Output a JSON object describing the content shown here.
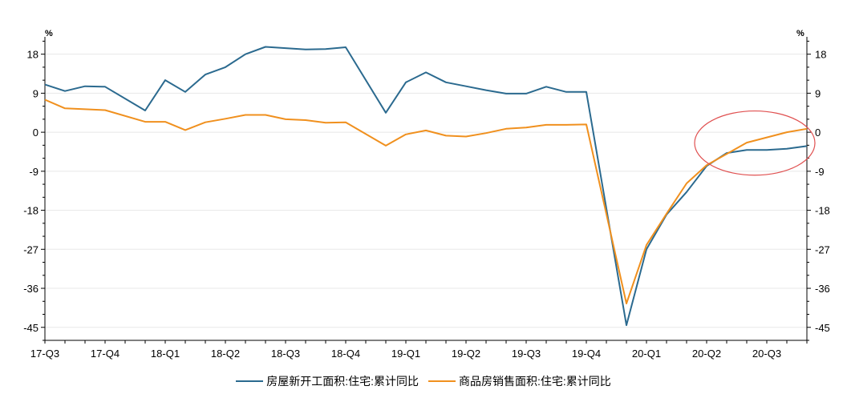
{
  "chart_data": {
    "type": "line",
    "y_unit_left": "%",
    "y_unit_right": "%",
    "ylim": [
      -48,
      22
    ],
    "yticks": [
      18,
      9,
      0,
      -9,
      -18,
      -27,
      -36,
      -45
    ],
    "ytick_labels": [
      "18",
      "9",
      "0",
      "-9",
      "-18",
      "-27",
      "-36",
      "-45"
    ],
    "x_labels": [
      "17-Q3",
      "17-Q4",
      "18-Q1",
      "18-Q2",
      "18-Q3",
      "18-Q4",
      "19-Q1",
      "19-Q2",
      "19-Q3",
      "19-Q4",
      "20-Q1",
      "20-Q2",
      "20-Q3"
    ],
    "xlim": [
      0,
      38
    ],
    "x_label_positions": [
      0,
      3,
      6,
      9,
      12,
      15,
      18,
      21,
      24,
      27,
      30,
      33,
      36
    ],
    "series": [
      {
        "name": "房屋新开工面积:住宅:累计同比",
        "color": "#2b6a8f",
        "x": [
          0,
          1,
          2,
          3,
          5,
          6,
          7,
          8,
          9,
          10,
          11,
          12,
          13,
          14,
          15,
          17,
          18,
          19,
          20,
          21,
          22,
          23,
          24,
          25,
          26,
          27,
          29,
          30,
          31,
          32,
          33,
          34,
          35,
          36,
          37,
          38
        ],
        "values": [
          11.0,
          9.5,
          10.6,
          10.5,
          5.0,
          12.0,
          9.3,
          13.3,
          15.0,
          18.0,
          19.7,
          19.4,
          19.1,
          19.2,
          19.6,
          4.5,
          11.5,
          13.8,
          11.5,
          10.6,
          9.7,
          8.9,
          8.9,
          10.5,
          9.3,
          9.3,
          -44.5,
          -27.0,
          -19.0,
          -13.8,
          -7.8,
          -4.8,
          -4.1,
          -4.1,
          -3.8,
          -3.2
        ]
      },
      {
        "name": "商品房销售面积:住宅:累计同比",
        "color": "#f0901e",
        "x": [
          0,
          1,
          2,
          3,
          5,
          6,
          7,
          8,
          9,
          10,
          11,
          12,
          13,
          14,
          15,
          17,
          18,
          19,
          20,
          21,
          22,
          23,
          24,
          25,
          26,
          27,
          29,
          30,
          31,
          32,
          33,
          34,
          35,
          36,
          37,
          38
        ],
        "values": [
          7.5,
          5.5,
          5.3,
          5.1,
          2.4,
          2.4,
          0.5,
          2.3,
          3.1,
          4.0,
          4.0,
          3.0,
          2.8,
          2.2,
          2.3,
          -3.1,
          -0.5,
          0.4,
          -0.8,
          -1.0,
          -0.2,
          0.8,
          1.1,
          1.7,
          1.7,
          1.8,
          -39.5,
          -26.0,
          -18.8,
          -11.8,
          -7.6,
          -5.0,
          -2.4,
          -1.2,
          0.0,
          0.8
        ]
      }
    ],
    "annotation": {
      "type": "ellipse",
      "color": "#e05050",
      "x_center": 35.4,
      "y_center": -2.5,
      "x_radius": 3.0,
      "y_radius": 7.4
    },
    "grid": true,
    "legend_position": "bottom"
  },
  "legend": {
    "s1_label": "房屋新开工面积:住宅:累计同比",
    "s2_label": "商品房销售面积:住宅:累计同比"
  }
}
